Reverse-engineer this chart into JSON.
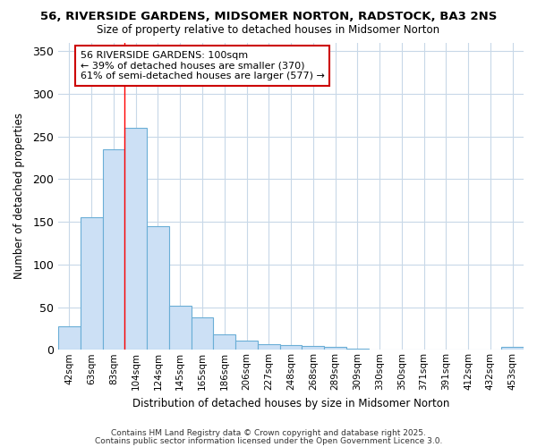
{
  "title1": "56, RIVERSIDE GARDENS, MIDSOMER NORTON, RADSTOCK, BA3 2NS",
  "title2": "Size of property relative to detached houses in Midsomer Norton",
  "xlabel": "Distribution of detached houses by size in Midsomer Norton",
  "ylabel": "Number of detached properties",
  "bin_labels": [
    "42sqm",
    "63sqm",
    "83sqm",
    "104sqm",
    "124sqm",
    "145sqm",
    "165sqm",
    "186sqm",
    "206sqm",
    "227sqm",
    "248sqm",
    "268sqm",
    "289sqm",
    "309sqm",
    "330sqm",
    "350sqm",
    "371sqm",
    "391sqm",
    "412sqm",
    "432sqm",
    "453sqm"
  ],
  "bar_heights": [
    28,
    155,
    235,
    260,
    145,
    52,
    38,
    18,
    11,
    7,
    5,
    4,
    3,
    1,
    0,
    0,
    0,
    0,
    0,
    0,
    3
  ],
  "bar_color": "#cce0f5",
  "bar_edge_color": "#6aaed6",
  "background_color": "#ffffff",
  "plot_bg_color": "#ffffff",
  "grid_color": "#c8d8e8",
  "red_line_bin_index": 3,
  "annotation_text": "56 RIVERSIDE GARDENS: 100sqm\n← 39% of detached houses are smaller (370)\n61% of semi-detached houses are larger (577) →",
  "annotation_box_color": "#ffffff",
  "annotation_box_edge_color": "#cc0000",
  "footer1": "Contains HM Land Registry data © Crown copyright and database right 2025.",
  "footer2": "Contains public sector information licensed under the Open Government Licence 3.0.",
  "ylim": [
    0,
    360
  ],
  "yticks": [
    0,
    50,
    100,
    150,
    200,
    250,
    300,
    350
  ]
}
